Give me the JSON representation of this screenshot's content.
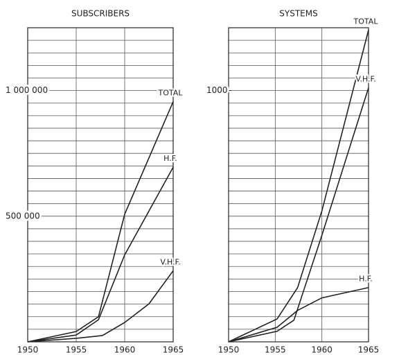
{
  "chart_data": [
    {
      "type": "line",
      "title": "SUBSCRIBERS",
      "xlim": [
        1950,
        1965
      ],
      "xticks": [
        1950,
        1955,
        1960,
        1965
      ],
      "ylim": [
        0,
        1250000
      ],
      "yticks": [
        {
          "value": 500000,
          "label": "500 000"
        },
        {
          "value": 1000000,
          "label": "1 000 000"
        }
      ],
      "ygrid": [
        50000,
        100000,
        150000,
        200000,
        250000,
        300000,
        350000,
        400000,
        450000,
        500000,
        550000,
        600000,
        650000,
        700000,
        750000,
        800000,
        850000,
        900000,
        950000,
        1000000,
        1050000,
        1100000,
        1150000,
        1200000
      ],
      "xgrid": [
        1955,
        1960
      ],
      "color": "#222222",
      "series": [
        {
          "name": "TOTAL",
          "x": [
            1950,
            1955,
            1957.3,
            1960,
            1965
          ],
          "values": [
            0,
            41000,
            100000,
            508000,
            956000
          ]
        },
        {
          "name": "H.F.",
          "x": [
            1950,
            1955,
            1957.3,
            1960,
            1965
          ],
          "values": [
            0,
            27000,
            88000,
            346000,
            695000
          ]
        },
        {
          "name": "V.H.F.",
          "x": [
            1950,
            1955,
            1957.7,
            1960,
            1962.5,
            1965
          ],
          "values": [
            0,
            14000,
            25000,
            77000,
            151000,
            283000
          ]
        }
      ]
    },
    {
      "type": "line",
      "title": "SYSTEMS",
      "xlim": [
        1950,
        1965
      ],
      "xticks": [
        1950,
        1955,
        1960,
        1965
      ],
      "ylim": [
        0,
        1250
      ],
      "yticks": [
        1000
      ],
      "ygrid": [
        50,
        100,
        150,
        200,
        250,
        300,
        350,
        400,
        450,
        500,
        550,
        600,
        650,
        700,
        750,
        800,
        850,
        900,
        950,
        1000,
        1050,
        1100,
        1150,
        1200
      ],
      "xgrid": [
        1955,
        1960
      ],
      "color": "#222222",
      "series": [
        {
          "name": "TOTAL",
          "x": [
            1950,
            1955.2,
            1957.4,
            1960,
            1965
          ],
          "values": [
            0,
            91,
            216,
            521,
            1241
          ]
        },
        {
          "name": "V.H.F.",
          "x": [
            1950,
            1955.2,
            1957,
            1960,
            1965
          ],
          "values": [
            0,
            42,
            86,
            424,
            1011
          ]
        },
        {
          "name": "H.F.",
          "x": [
            1950,
            1955.2,
            1957.4,
            1960,
            1965
          ],
          "values": [
            0,
            58,
            125,
            175,
            216
          ]
        }
      ]
    }
  ]
}
